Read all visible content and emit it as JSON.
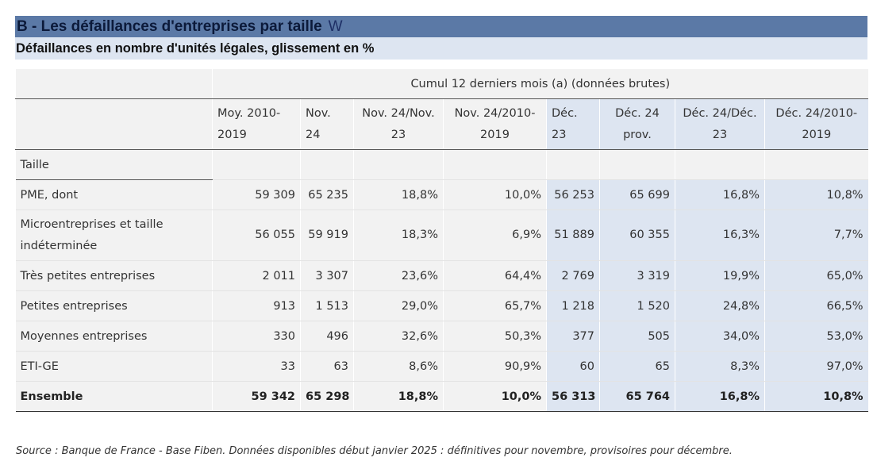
{
  "title": "B - Les défaillances d'entreprises par taille",
  "title_icon": "W",
  "subtitle": "Défaillances en nombre d'unités légales, glissement en %",
  "table": {
    "group_header": "Cumul 12 derniers mois (a) (données brutes)",
    "columns": [
      "Moy. 2010-2019",
      "Nov. 24",
      "Nov. 24/Nov. 23",
      "Nov. 24/2010-2019",
      "Déc. 23",
      "Déc. 24 prov.",
      "Déc. 24/Déc. 23",
      "Déc. 24/2010-2019"
    ],
    "section_label": "Taille",
    "rows": [
      {
        "label": "PME, dont",
        "values": [
          "59 309",
          "65 235",
          "18,8%",
          "10,0%",
          "56 253",
          "65 699",
          "16,8%",
          "10,8%"
        ]
      },
      {
        "label": "Microentreprises et taille indéterminée",
        "values": [
          "56 055",
          "59 919",
          "18,3%",
          "6,9%",
          "51 889",
          "60 355",
          "16,3%",
          "7,7%"
        ]
      },
      {
        "label": "Très petites entreprises",
        "values": [
          "2 011",
          "3 307",
          "23,6%",
          "64,4%",
          "2 769",
          "3 319",
          "19,9%",
          "65,0%"
        ]
      },
      {
        "label": "Petites entreprises",
        "values": [
          "913",
          "1 513",
          "29,0%",
          "65,7%",
          "1 218",
          "1 520",
          "24,8%",
          "66,5%"
        ]
      },
      {
        "label": "Moyennes entreprises",
        "values": [
          "330",
          "496",
          "32,6%",
          "50,3%",
          "377",
          "505",
          "34,0%",
          "53,0%"
        ]
      },
      {
        "label": "ETI-GE",
        "values": [
          "33",
          "63",
          "8,6%",
          "90,9%",
          "60",
          "65",
          "8,3%",
          "97,0%"
        ]
      }
    ],
    "total": {
      "label": "Ensemble",
      "values": [
        "59 342",
        "65 298",
        "18,8%",
        "10,0%",
        "56 313",
        "65 764",
        "16,8%",
        "10,8%"
      ]
    }
  },
  "source": "Source : Banque de France - Base Fiben. Données disponibles début janvier 2025 : définitives pour novembre, provisoires pour décembre.",
  "colors": {
    "title_bar": "#5b79a6",
    "subtitle_bar": "#dde5f1",
    "grey_cell": "#f2f2f2",
    "blue_cell": "#dde5f1"
  }
}
